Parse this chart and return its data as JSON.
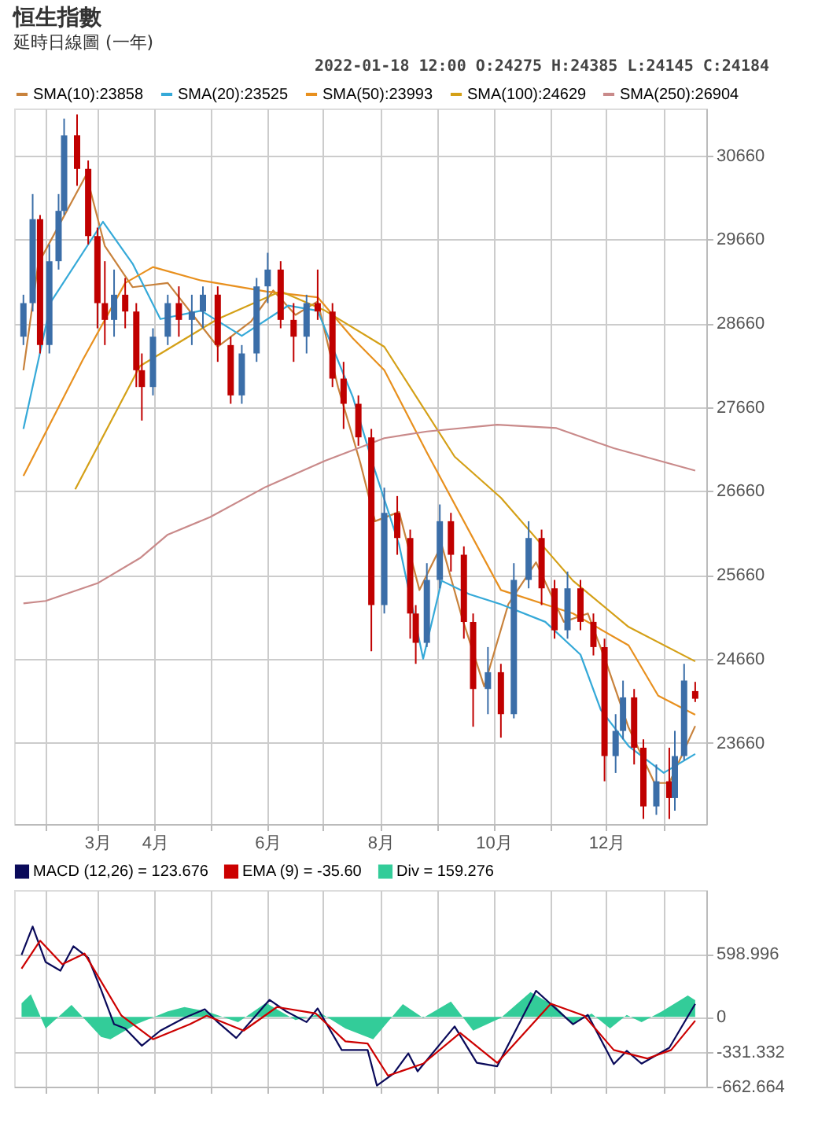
{
  "chart_data": [
    {
      "type": "candlestick",
      "title": "恒生指數",
      "subtitle": "延時日線圖 (一年)",
      "annotations": [
        "2022-01-18 12:00   O:24275  H:24385  L:24145  C:24184"
      ],
      "x": [
        "2021-01-20",
        "2021-01-25",
        "2021-01-29",
        "2021-02-03",
        "2021-02-08",
        "2021-02-11",
        "2021-02-18",
        "2021-02-24",
        "2021-03-01",
        "2021-03-05",
        "2021-03-10",
        "2021-03-16",
        "2021-03-22",
        "2021-03-25",
        "2021-03-31",
        "2021-04-08",
        "2021-04-14",
        "2021-04-21",
        "2021-04-27",
        "2021-05-05",
        "2021-05-12",
        "2021-05-18",
        "2021-05-26",
        "2021-06-01",
        "2021-06-08",
        "2021-06-15",
        "2021-06-22",
        "2021-06-28",
        "2021-07-06",
        "2021-07-12",
        "2021-07-20",
        "2021-07-27",
        "2021-08-03",
        "2021-08-10",
        "2021-08-17",
        "2021-08-20",
        "2021-08-26",
        "2021-09-02",
        "2021-09-08",
        "2021-09-15",
        "2021-09-20",
        "2021-09-28",
        "2021-10-05",
        "2021-10-12",
        "2021-10-20",
        "2021-10-27",
        "2021-11-03",
        "2021-11-10",
        "2021-11-17",
        "2021-11-24",
        "2021-11-30",
        "2021-12-06",
        "2021-12-10",
        "2021-12-16",
        "2021-12-21",
        "2021-12-28",
        "2022-01-04",
        "2022-01-07",
        "2022-01-12",
        "2022-01-18"
      ],
      "ohlc": [
        [
          28500,
          29000,
          28400,
          28900
        ],
        [
          28900,
          30200,
          28800,
          29900
        ],
        [
          29900,
          29950,
          28300,
          28400
        ],
        [
          28400,
          29600,
          28300,
          29400
        ],
        [
          29400,
          30200,
          29300,
          30000
        ],
        [
          30000,
          31100,
          29950,
          30900
        ],
        [
          30900,
          31150,
          30300,
          30500
        ],
        [
          30500,
          30600,
          29600,
          29700
        ],
        [
          29700,
          29800,
          28600,
          28900
        ],
        [
          28900,
          29400,
          28400,
          28700
        ],
        [
          28700,
          29300,
          28500,
          29000
        ],
        [
          29000,
          29200,
          28600,
          28800
        ],
        [
          28800,
          28900,
          27900,
          28100
        ],
        [
          28100,
          28300,
          27500,
          27900
        ],
        [
          27900,
          28600,
          27800,
          28500
        ],
        [
          28500,
          29000,
          28400,
          28900
        ],
        [
          28900,
          29100,
          28500,
          28700
        ],
        [
          28700,
          29000,
          28400,
          28800
        ],
        [
          28800,
          29100,
          28600,
          29000
        ],
        [
          29000,
          29100,
          28200,
          28400
        ],
        [
          28400,
          28500,
          27700,
          27800
        ],
        [
          27800,
          28400,
          27700,
          28300
        ],
        [
          28300,
          29200,
          28200,
          29100
        ],
        [
          29100,
          29500,
          28900,
          29300
        ],
        [
          29300,
          29400,
          28600,
          28700
        ],
        [
          28700,
          28900,
          28200,
          28500
        ],
        [
          28500,
          29000,
          28300,
          28900
        ],
        [
          28900,
          29300,
          28700,
          28800
        ],
        [
          28800,
          28900,
          27900,
          28000
        ],
        [
          28000,
          28200,
          27400,
          27700
        ],
        [
          27700,
          27800,
          27200,
          27300
        ],
        [
          27300,
          27400,
          24750,
          25300
        ],
        [
          25300,
          26700,
          25200,
          26400
        ],
        [
          26400,
          26600,
          25900,
          26100
        ],
        [
          26100,
          26200,
          24900,
          25200
        ],
        [
          25200,
          25300,
          24600,
          24850
        ],
        [
          24850,
          25800,
          24800,
          25600
        ],
        [
          25600,
          26500,
          25500,
          26300
        ],
        [
          26300,
          26400,
          25700,
          25900
        ],
        [
          25900,
          26000,
          24900,
          25100
        ],
        [
          25100,
          25200,
          23850,
          24300
        ],
        [
          24300,
          24800,
          24000,
          24500
        ],
        [
          24500,
          24600,
          23720,
          24000
        ],
        [
          24000,
          25800,
          23950,
          25600
        ],
        [
          25600,
          26300,
          25500,
          26100
        ],
        [
          26100,
          26200,
          25300,
          25500
        ],
        [
          25500,
          25600,
          24900,
          25000
        ],
        [
          25000,
          25700,
          24900,
          25500
        ],
        [
          25500,
          25600,
          25000,
          25100
        ],
        [
          25100,
          25200,
          24700,
          24800
        ],
        [
          24800,
          24900,
          23200,
          23500
        ],
        [
          23500,
          24000,
          23300,
          23800
        ],
        [
          23800,
          24400,
          23700,
          24200
        ],
        [
          24200,
          24300,
          23400,
          23600
        ],
        [
          23600,
          23700,
          22750,
          22900
        ],
        [
          22900,
          23400,
          22800,
          23200
        ],
        [
          23200,
          23600,
          22750,
          23000
        ],
        [
          23000,
          23800,
          22850,
          23500
        ],
        [
          23500,
          24600,
          23450,
          24400
        ],
        [
          24275,
          24385,
          24145,
          24184
        ]
      ],
      "colors": [
        "#3b6ea8",
        "#3b6ea8",
        "#c00000",
        "#3b6ea8",
        "#3b6ea8",
        "#3b6ea8",
        "#c00000",
        "#c00000",
        "#c00000",
        "#c00000",
        "#3b6ea8",
        "#c00000",
        "#c00000",
        "#c00000",
        "#3b6ea8",
        "#3b6ea8",
        "#c00000",
        "#3b6ea8",
        "#3b6ea8",
        "#c00000",
        "#c00000",
        "#3b6ea8",
        "#3b6ea8",
        "#3b6ea8",
        "#c00000",
        "#c00000",
        "#3b6ea8",
        "#c00000",
        "#c00000",
        "#c00000",
        "#c00000",
        "#c00000",
        "#3b6ea8",
        "#c00000",
        "#c00000",
        "#c00000",
        "#3b6ea8",
        "#3b6ea8",
        "#c00000",
        "#c00000",
        "#c00000",
        "#3b6ea8",
        "#c00000",
        "#3b6ea8",
        "#3b6ea8",
        "#c00000",
        "#c00000",
        "#3b6ea8",
        "#c00000",
        "#c00000",
        "#c00000",
        "#3b6ea8",
        "#3b6ea8",
        "#c00000",
        "#c00000",
        "#3b6ea8",
        "#c00000",
        "#3b6ea8",
        "#3b6ea8",
        "#c00000"
      ],
      "series": [
        {
          "name": "SMA(10):23858",
          "color": "#c8823c",
          "type": "line",
          "x": [
            "2021-01-20",
            "2021-01-28",
            "2021-02-23",
            "2021-03-05",
            "2021-03-20",
            "2021-04-08",
            "2021-05-05",
            "2021-05-23",
            "2021-06-04",
            "2021-06-16",
            "2021-06-28",
            "2021-07-09",
            "2021-07-21",
            "2021-07-29",
            "2021-08-11",
            "2021-08-22",
            "2021-09-03",
            "2021-09-14",
            "2021-09-26",
            "2021-10-09",
            "2021-10-24",
            "2021-11-08",
            "2021-11-21",
            "2021-12-01",
            "2021-12-13",
            "2021-12-27",
            "2022-01-04",
            "2022-01-18"
          ],
          "values": [
            28100,
            29370,
            30430,
            29580,
            29090,
            29140,
            28380,
            28680,
            29050,
            28760,
            28920,
            27900,
            27000,
            26300,
            26410,
            25480,
            26020,
            25150,
            24330,
            25310,
            25810,
            25100,
            25200,
            24610,
            23840,
            23180,
            23180,
            23858
          ]
        },
        {
          "name": "SMA(20):23525",
          "color": "#35a9d8",
          "type": "line",
          "x": [
            "2021-01-20",
            "2021-02-04",
            "2021-03-04",
            "2021-03-20",
            "2021-04-04",
            "2021-04-26",
            "2021-05-18",
            "2021-06-12",
            "2021-06-28",
            "2021-07-17",
            "2021-07-29",
            "2021-08-11",
            "2021-08-24",
            "2021-09-03",
            "2021-09-18",
            "2021-10-05",
            "2021-10-29",
            "2021-11-17",
            "2021-11-28",
            "2021-12-13",
            "2022-01-01",
            "2022-01-18"
          ],
          "values": [
            27400,
            28920,
            29870,
            29370,
            28710,
            28810,
            28510,
            28870,
            28810,
            27780,
            26900,
            26020,
            24660,
            25590,
            25430,
            25310,
            25100,
            24710,
            24050,
            23620,
            23300,
            23525
          ]
        },
        {
          "name": "SMA(50):23993",
          "color": "#e8901e",
          "type": "line",
          "x": [
            "2021-01-20",
            "2021-02-21",
            "2021-03-16",
            "2021-03-31",
            "2021-04-26",
            "2021-05-31",
            "2021-06-28",
            "2021-07-17",
            "2021-08-03",
            "2021-08-26",
            "2021-10-05",
            "2021-11-13",
            "2021-12-13",
            "2021-12-29",
            "2022-01-18"
          ],
          "values": [
            26840,
            28220,
            29140,
            29330,
            29170,
            29040,
            28970,
            28480,
            28100,
            27120,
            25480,
            25200,
            24820,
            24220,
            23993
          ]
        },
        {
          "name": "SMA(100):24629",
          "color": "#d4a017",
          "type": "line",
          "x": [
            "2021-02-17",
            "2021-03-24",
            "2021-05-05",
            "2021-06-08",
            "2021-07-02",
            "2021-08-03",
            "2021-09-10",
            "2021-10-05",
            "2021-11-13",
            "2021-12-13",
            "2022-01-18"
          ],
          "values": [
            26680,
            28150,
            28710,
            29040,
            28810,
            28380,
            27070,
            26580,
            25590,
            25040,
            24629
          ]
        },
        {
          "name": "SMA(250):26904",
          "color": "#c98a8a",
          "type": "line",
          "x": [
            "2021-01-20",
            "2021-02-01",
            "2021-03-01",
            "2021-03-24",
            "2021-04-08",
            "2021-05-01",
            "2021-05-31",
            "2021-07-02",
            "2021-08-03",
            "2021-08-26",
            "2021-10-03",
            "2021-11-04",
            "2021-12-05",
            "2022-01-18"
          ],
          "values": [
            25320,
            25350,
            25560,
            25860,
            26140,
            26350,
            26710,
            27020,
            27290,
            27370,
            27450,
            27410,
            27170,
            26904
          ]
        }
      ],
      "xlim": [
        "2021-01-15",
        "2022-01-24"
      ],
      "xticks": [
        {
          "value": "2021-02-01",
          "label": null
        },
        {
          "value": "2021-03-01",
          "label": "3月"
        },
        {
          "value": "2021-04-01",
          "label": "4月"
        },
        {
          "value": "2021-05-01",
          "label": null
        },
        {
          "value": "2021-06-01",
          "label": "6月"
        },
        {
          "value": "2021-07-01",
          "label": null
        },
        {
          "value": "2021-08-01",
          "label": "8月"
        },
        {
          "value": "2021-09-01",
          "label": null
        },
        {
          "value": "2021-10-01",
          "label": "10月"
        },
        {
          "value": "2021-11-01",
          "label": null
        },
        {
          "value": "2021-12-01",
          "label": "12月"
        },
        {
          "value": "2022-01-01",
          "label": null
        }
      ],
      "ylim": [
        22690,
        31220
      ],
      "yticks": [
        23660,
        24660,
        25660,
        26660,
        27660,
        28660,
        29660,
        30660
      ],
      "grid": true,
      "legend": "top left"
    },
    {
      "type": "line",
      "series": [
        {
          "name": "MACD (12,26) = 123.676",
          "color": "#0a0a5a",
          "type": "line",
          "x": [
            "2021-01-19",
            "2021-01-25",
            "2021-02-01",
            "2021-02-09",
            "2021-02-16",
            "2021-02-24",
            "2021-03-03",
            "2021-03-10",
            "2021-03-16",
            "2021-03-25",
            "2021-04-04",
            "2021-04-17",
            "2021-04-28",
            "2021-05-05",
            "2021-05-15",
            "2021-06-02",
            "2021-06-11",
            "2021-06-22",
            "2021-06-28",
            "2021-07-11",
            "2021-07-25",
            "2021-07-30",
            "2021-08-08",
            "2021-08-16",
            "2021-08-21",
            "2021-09-10",
            "2021-09-22",
            "2021-10-03",
            "2021-10-24",
            "2021-11-13",
            "2021-11-21",
            "2021-12-05",
            "2021-12-12",
            "2021-12-20",
            "2022-01-04",
            "2022-01-18"
          ],
          "values": [
            591,
            860,
            522,
            440,
            672,
            562,
            257,
            -69,
            -110,
            -273,
            -130,
            -8,
            73,
            -49,
            -200,
            163,
            53,
            -49,
            81,
            -314,
            -314,
            -652,
            -538,
            -346,
            -517,
            -90,
            -436,
            -469,
            249,
            -69,
            20,
            -448,
            -322,
            -444,
            -293,
            123.676
          ]
        },
        {
          "name": "EMA (9) = -35.60",
          "color": "#cc0000",
          "type": "line",
          "x": [
            "2021-01-19",
            "2021-01-29",
            "2021-02-10",
            "2021-02-22",
            "2021-03-14",
            "2021-03-31",
            "2021-04-20",
            "2021-04-29",
            "2021-05-19",
            "2021-06-06",
            "2021-06-27",
            "2021-07-13",
            "2021-07-25",
            "2021-08-05",
            "2021-08-24",
            "2021-09-13",
            "2021-10-03",
            "2021-11-01",
            "2021-11-19",
            "2021-12-05",
            "2021-12-23",
            "2022-01-05",
            "2022-01-18"
          ],
          "values": [
            460,
            725,
            501,
            603,
            12,
            -212,
            -69,
            12,
            -130,
            94,
            33,
            -232,
            -253,
            -558,
            -444,
            -151,
            -436,
            126,
            12,
            -314,
            -395,
            -314,
            -35.6
          ]
        },
        {
          "name": "Div = 159.276",
          "color": "#33cc99",
          "type": "area",
          "x": [
            "2021-01-19",
            "2021-01-24",
            "2021-02-01",
            "2021-02-15",
            "2021-03-03",
            "2021-03-08",
            "2021-03-22",
            "2021-04-08",
            "2021-04-17",
            "2021-04-29",
            "2021-05-16",
            "2021-05-31",
            "2021-06-16",
            "2021-06-30",
            "2021-07-13",
            "2021-07-28",
            "2021-08-13",
            "2021-08-24",
            "2021-09-08",
            "2021-09-20",
            "2021-10-05",
            "2021-10-21",
            "2021-11-04",
            "2021-11-13",
            "2021-11-23",
            "2021-12-03",
            "2021-12-12",
            "2021-12-20",
            "2021-12-31",
            "2022-01-14",
            "2022-01-18"
          ],
          "values": [
            130,
            216,
            -110,
            114,
            -190,
            -212,
            -69,
            53,
            94,
            53,
            -49,
            134,
            -29,
            33,
            -110,
            -212,
            122,
            -8,
            147,
            -130,
            -8,
            236,
            94,
            -69,
            33,
            -110,
            20,
            -49,
            53,
            204,
            159.276
          ]
        }
      ],
      "xlim": [
        "2021-01-15",
        "2022-01-24"
      ],
      "xticks": [
        {
          "value": "2021-02-01",
          "label": null
        },
        {
          "value": "2021-03-01",
          "label": null
        },
        {
          "value": "2021-04-01",
          "label": null
        },
        {
          "value": "2021-05-01",
          "label": null
        },
        {
          "value": "2021-06-01",
          "label": null
        },
        {
          "value": "2021-07-01",
          "label": null
        },
        {
          "value": "2021-08-01",
          "label": null
        },
        {
          "value": "2021-09-01",
          "label": null
        },
        {
          "value": "2021-10-01",
          "label": null
        },
        {
          "value": "2021-11-01",
          "label": null
        },
        {
          "value": "2021-12-01",
          "label": null
        },
        {
          "value": "2022-01-01",
          "label": null
        }
      ],
      "ylim": [
        -662.664,
        1206
      ],
      "yticks": [
        598.996,
        0,
        -331.332,
        -662.664
      ],
      "tick_labels": "y",
      "grid": true,
      "legend": "top left"
    }
  ]
}
